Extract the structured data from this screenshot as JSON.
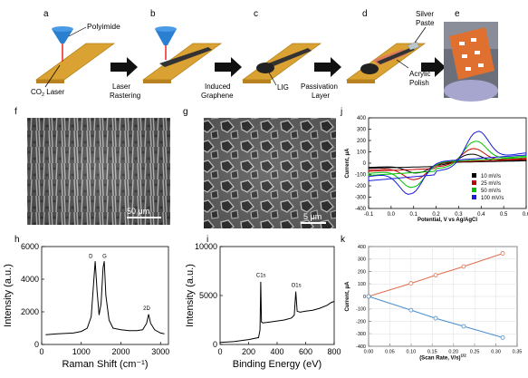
{
  "panel_letters": {
    "a": "a",
    "b": "b",
    "c": "c",
    "d": "d",
    "e": "e",
    "f": "f",
    "g": "g",
    "h": "h",
    "i": "i",
    "j": "j",
    "k": "k"
  },
  "schematic": {
    "polyimide": "Polyimide",
    "co2_laser": "CO",
    "co2_sub": "2",
    "co2_tail": " Laser",
    "step1_l1": "Laser",
    "step1_l2": "Rastering",
    "step2_l1": "Induced",
    "step2_l2": "Graphene",
    "lig": "LIG",
    "step3_l1": "Passivation",
    "step3_l2": "Layer",
    "silver_l1": "Silver",
    "silver_l2": "Paste",
    "acrylic_l1": "Acrylic",
    "acrylic_l2": "Polish",
    "colors": {
      "substrate": "#d9a232",
      "laser_head": "#2b7fd0",
      "electrode": "#333333",
      "polish": "#e07a5f",
      "silver": "#bcc6cc",
      "arrow": "#111111"
    }
  },
  "sem": {
    "f_scale": "50 μm",
    "g_scale": "5 μm"
  },
  "chart_data": [
    {
      "panel": "h",
      "type": "line",
      "xlabel": "Raman Shift (cm⁻¹)",
      "ylabel": "Intensity (a.u.)",
      "xlim": [
        0,
        3200
      ],
      "ylim": [
        0,
        6000
      ],
      "xticks": [
        "0",
        "1000",
        "2000",
        "3000"
      ],
      "yticks": [
        "0",
        "2000",
        "4000",
        "6000"
      ],
      "annotations": [
        "D",
        "G",
        "2D"
      ],
      "series": [
        {
          "x": [
            100,
            400,
            800,
            1000,
            1150,
            1250,
            1300,
            1350,
            1400,
            1450,
            1500,
            1550,
            1580,
            1620,
            1700,
            1800,
            2000,
            2200,
            2400,
            2550,
            2650,
            2700,
            2750,
            2850,
            3000,
            3100
          ],
          "y": [
            600,
            650,
            700,
            800,
            1000,
            1700,
            3400,
            5100,
            3200,
            1800,
            2500,
            4700,
            5100,
            3000,
            1500,
            1000,
            900,
            850,
            850,
            900,
            1300,
            1850,
            1300,
            900,
            700,
            650
          ],
          "color": "#000000"
        }
      ]
    },
    {
      "panel": "i",
      "type": "line",
      "xlabel": "Binding Energy (eV)",
      "ylabel": "Intensity (a.u.)",
      "xlim": [
        0,
        800
      ],
      "ylim": [
        0,
        10000
      ],
      "xticks": [
        "0",
        "200",
        "400",
        "600",
        "800"
      ],
      "yticks": [
        "0",
        "5000",
        "10000"
      ],
      "annotations": [
        "C1s",
        "O1s"
      ],
      "series": [
        {
          "x": [
            0,
            100,
            200,
            270,
            280,
            285,
            290,
            300,
            350,
            400,
            450,
            500,
            520,
            531,
            540,
            560,
            600,
            650,
            700,
            750,
            780,
            800
          ],
          "y": [
            200,
            300,
            500,
            700,
            1500,
            6400,
            2300,
            2200,
            2300,
            2400,
            2500,
            2700,
            3000,
            5400,
            3400,
            3300,
            3400,
            3500,
            3700,
            4000,
            4300,
            4400
          ],
          "color": "#000000"
        }
      ]
    },
    {
      "panel": "j",
      "type": "line",
      "xlabel": "Potential, V vs Ag/AgCl",
      "ylabel": "Current, μA",
      "xlim": [
        -0.1,
        0.6
      ],
      "ylim": [
        -400,
        400
      ],
      "xticks": [
        "-0.1",
        "0.0",
        "0.1",
        "0.2",
        "0.3",
        "0.4",
        "0.5",
        "0.6"
      ],
      "yticks": [
        "400",
        "300",
        "200",
        "100",
        "0",
        "-100",
        "-200",
        "-300",
        "-400"
      ],
      "legend": "bottom-right",
      "series": [
        {
          "name": "10 mV/s",
          "color": "#000000",
          "ip": 100,
          "ia": -90,
          "Eox": 0.35,
          "Ered": 0.12
        },
        {
          "name": "25 mV/s",
          "color": "#c00000",
          "ip": 160,
          "ia": -150,
          "Eox": 0.36,
          "Ered": 0.11
        },
        {
          "name": "50 mV/s",
          "color": "#00c000",
          "ip": 240,
          "ia": -220,
          "Eox": 0.37,
          "Ered": 0.1
        },
        {
          "name": "100 mV/s",
          "color": "#1a1adb",
          "ip": 345,
          "ia": -280,
          "Eox": 0.38,
          "Ered": 0.09
        }
      ]
    },
    {
      "panel": "k",
      "type": "scatter",
      "xlabel": "(Scan Rate, V/s)",
      "xlabel_sup": "1/2",
      "ylabel": "Current, μA",
      "xlim": [
        0,
        0.35
      ],
      "ylim": [
        -400,
        400
      ],
      "xticks": [
        "0.00",
        "0.05",
        "0.10",
        "0.15",
        "0.20",
        "0.25",
        "0.30",
        "0.35"
      ],
      "yticks": [
        "400",
        "300",
        "200",
        "100",
        "0",
        "-100",
        "-200",
        "-300",
        "-400"
      ],
      "series": [
        {
          "x": [
            0,
            0.1,
            0.158,
            0.224,
            0.316
          ],
          "y": [
            0,
            105,
            170,
            240,
            345
          ],
          "color": "#e07050"
        },
        {
          "x": [
            0,
            0.1,
            0.158,
            0.224,
            0.316
          ],
          "y": [
            0,
            -110,
            -175,
            -240,
            -330
          ],
          "color": "#4a8fd0"
        }
      ]
    }
  ]
}
